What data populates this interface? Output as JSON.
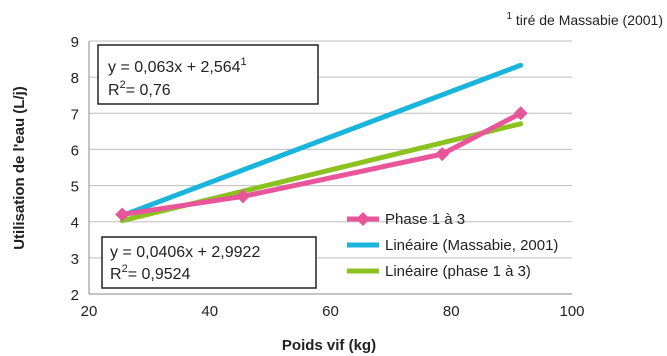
{
  "chart_data": {
    "type": "line",
    "note": {
      "marker": "1",
      "text": " tiré de Massabie (2001)"
    },
    "xlabel": "Poids vif (kg)",
    "ylabel": "Utilisation de l'eau (L/j)",
    "xlim": [
      20,
      100
    ],
    "ylim": [
      2,
      9
    ],
    "xticks": [
      20,
      40,
      60,
      80,
      100
    ],
    "yticks": [
      2,
      3,
      4,
      5,
      6,
      7,
      8,
      9
    ],
    "grid": "horizontal",
    "legend_position": "bottom-right",
    "series": [
      {
        "name": "Phase 1 à 3",
        "color": "#e9559a",
        "marker": "diamond",
        "x": [
          25.5,
          45.5,
          78.5,
          91.5
        ],
        "y": [
          4.2,
          4.7,
          5.87,
          7.0
        ]
      },
      {
        "name": "Linéaire (Massabie, 2001)",
        "color": "#1ab5db",
        "marker": "none",
        "x": [
          25.5,
          91.5
        ],
        "y": [
          4.17,
          8.33
        ]
      },
      {
        "name": "Linéaire (phase 1 à 3)",
        "color": "#8bc220",
        "marker": "none",
        "x": [
          25.5,
          91.5
        ],
        "y": [
          4.03,
          6.71
        ]
      }
    ],
    "equations": [
      {
        "line1": "y = 0,063x + 2,564",
        "line1_sup": "1",
        "line2_pre": "R",
        "line2_sup": "2",
        "line2_post": "= 0,76"
      },
      {
        "line1": "y = 0,0406x + 2,9922",
        "line1_sup": "",
        "line2_pre": "R",
        "line2_sup": "2",
        "line2_post": "= 0,9524"
      }
    ]
  }
}
